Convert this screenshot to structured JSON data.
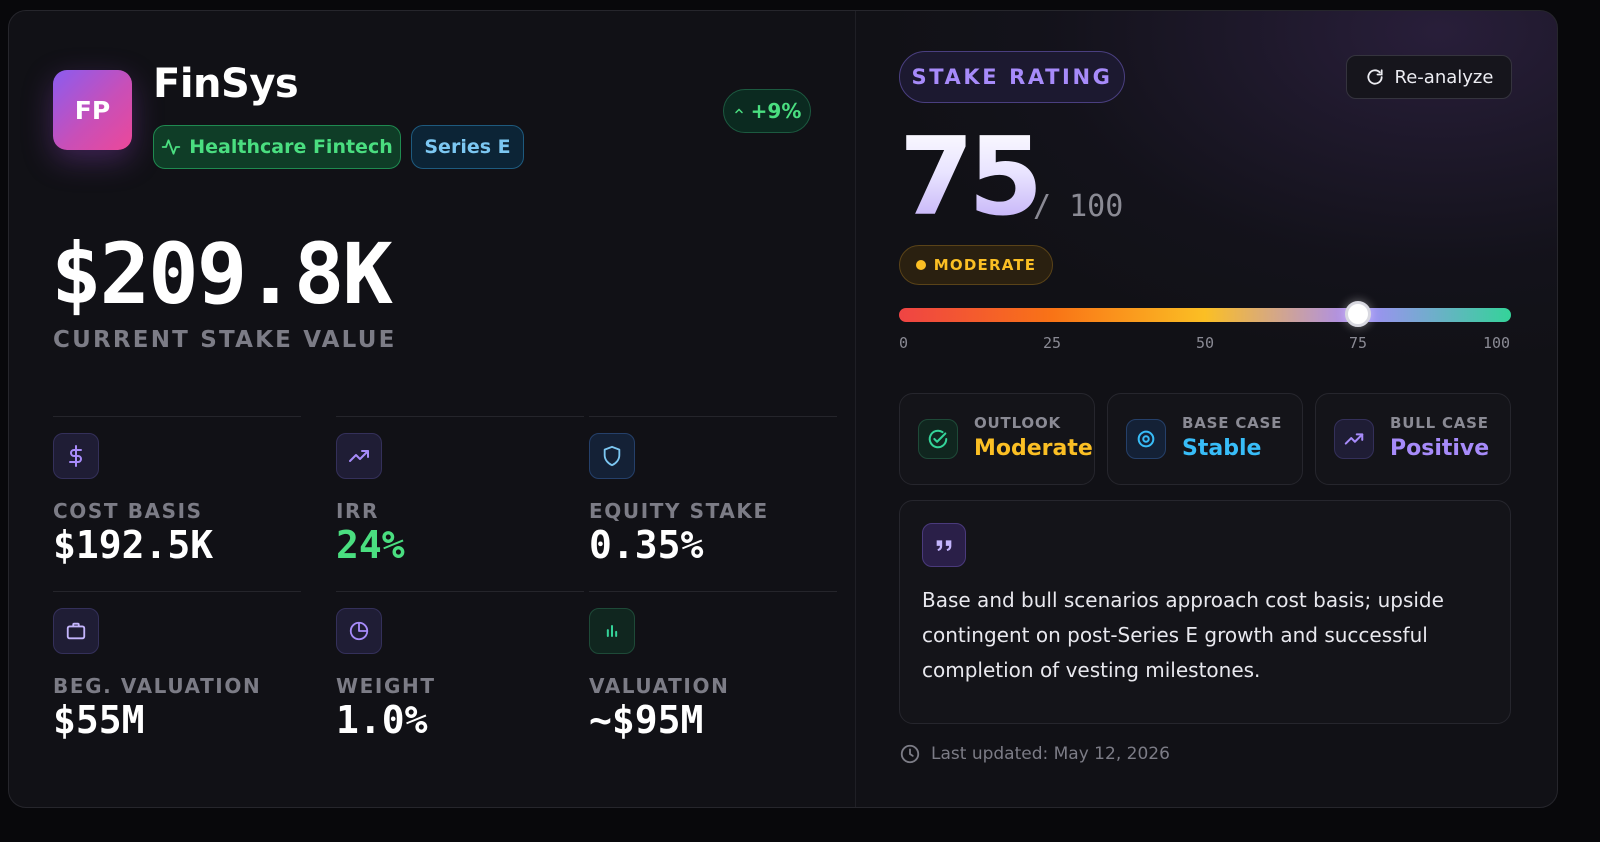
{
  "company": {
    "initials": "FP",
    "name": "FinSys",
    "sector": "Healthcare Fintech",
    "series": "Series E",
    "change": "+9%"
  },
  "stake": {
    "value": "$209.8K",
    "label": "CURRENT STAKE VALUE"
  },
  "metrics": [
    {
      "label": "COST BASIS",
      "value": "$192.5K",
      "icon": "dollar-icon"
    },
    {
      "label": "IRR",
      "value": "24%",
      "icon": "trending-up-icon"
    },
    {
      "label": "EQUITY STAKE",
      "value": "0.35%",
      "icon": "shield-icon"
    },
    {
      "label": "BEG. VALUATION",
      "value": "$55M",
      "icon": "briefcase-icon"
    },
    {
      "label": "WEIGHT",
      "value": "1.0%",
      "icon": "pie-chart-icon"
    },
    {
      "label": "VALUATION",
      "value": "~$95M",
      "icon": "bar-chart-icon"
    }
  ],
  "rating": {
    "title": "STAKE RATING",
    "reanalyze_label": "Re-analyze",
    "score": "75",
    "max": "/ 100",
    "level": "MODERATE",
    "score_value": 75,
    "scale_ticks": [
      "0",
      "25",
      "50",
      "75",
      "100"
    ]
  },
  "scenarios": [
    {
      "label": "OUTLOOK",
      "value": "Moderate",
      "color": "#fbbf24",
      "icon": "check-circle-icon"
    },
    {
      "label": "BASE CASE",
      "value": "Stable",
      "color": "#38bdf8",
      "icon": "target-icon"
    },
    {
      "label": "BULL CASE",
      "value": "Positive",
      "color": "#a78bfa",
      "icon": "trending-up-icon"
    }
  ],
  "note": {
    "text": "Base and bull scenarios approach cost basis; upside contingent on post-Series E growth and successful completion of vesting milestones."
  },
  "updated": "Last updated: May 12, 2026",
  "colors": {
    "accent_purple": "#a78bfa",
    "positive_green": "#4ade80",
    "warning_amber": "#fbbf24"
  }
}
